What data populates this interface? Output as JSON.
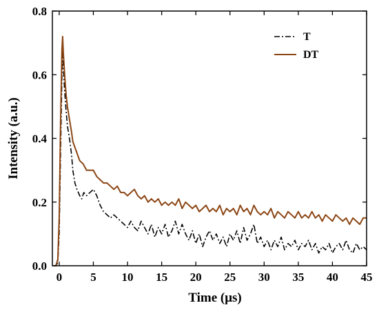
{
  "chart_data": {
    "type": "line",
    "xlabel": "Time (μs)",
    "ylabel": "Intensity (a.u.)",
    "xlim": [
      -1,
      45
    ],
    "ylim": [
      0,
      0.8
    ],
    "x_ticks": [
      0,
      5,
      10,
      15,
      20,
      25,
      30,
      35,
      40,
      45
    ],
    "y_ticks": [
      0.0,
      0.2,
      0.4,
      0.6,
      0.8
    ],
    "y_tick_labels": [
      "0.0",
      "0.2",
      "0.4",
      "0.6",
      "0.8"
    ],
    "legend_position": "top-right",
    "grid": false,
    "series": [
      {
        "name": "T",
        "color": "#000000",
        "style": "dash-dot",
        "points": [
          [
            -0.8,
            0.0
          ],
          [
            -0.5,
            0.0
          ],
          [
            -0.2,
            0.01
          ],
          [
            0.0,
            0.1
          ],
          [
            0.2,
            0.35
          ],
          [
            0.4,
            0.6
          ],
          [
            0.5,
            0.7
          ],
          [
            0.6,
            0.62
          ],
          [
            0.8,
            0.55
          ],
          [
            1.0,
            0.49
          ],
          [
            1.2,
            0.44
          ],
          [
            1.5,
            0.4
          ],
          [
            1.8,
            0.35
          ],
          [
            2.0,
            0.3
          ],
          [
            2.3,
            0.26
          ],
          [
            2.6,
            0.24
          ],
          [
            3.0,
            0.22
          ],
          [
            3.3,
            0.21
          ],
          [
            3.6,
            0.23
          ],
          [
            4.0,
            0.22
          ],
          [
            4.5,
            0.23
          ],
          [
            5.0,
            0.24
          ],
          [
            5.5,
            0.22
          ],
          [
            6.0,
            0.19
          ],
          [
            6.5,
            0.17
          ],
          [
            7.0,
            0.16
          ],
          [
            7.5,
            0.15
          ],
          [
            8.0,
            0.16
          ],
          [
            8.5,
            0.15
          ],
          [
            9.0,
            0.14
          ],
          [
            9.5,
            0.13
          ],
          [
            10.0,
            0.12
          ],
          [
            10.5,
            0.14
          ],
          [
            11.0,
            0.12
          ],
          [
            11.5,
            0.11
          ],
          [
            12.0,
            0.14
          ],
          [
            12.5,
            0.12
          ],
          [
            13.0,
            0.1
          ],
          [
            13.5,
            0.13
          ],
          [
            14.0,
            0.09
          ],
          [
            14.5,
            0.12
          ],
          [
            15.0,
            0.1
          ],
          [
            15.5,
            0.13
          ],
          [
            16.0,
            0.09
          ],
          [
            16.5,
            0.11
          ],
          [
            17.0,
            0.14
          ],
          [
            17.5,
            0.1
          ],
          [
            18.0,
            0.13
          ],
          [
            18.5,
            0.1
          ],
          [
            19.0,
            0.08
          ],
          [
            19.5,
            0.11
          ],
          [
            20.0,
            0.07
          ],
          [
            20.5,
            0.1
          ],
          [
            21.0,
            0.06
          ],
          [
            21.5,
            0.09
          ],
          [
            22.0,
            0.11
          ],
          [
            22.5,
            0.08
          ],
          [
            23.0,
            0.1
          ],
          [
            23.5,
            0.07
          ],
          [
            24.0,
            0.09
          ],
          [
            24.5,
            0.06
          ],
          [
            25.0,
            0.1
          ],
          [
            25.5,
            0.08
          ],
          [
            26.0,
            0.11
          ],
          [
            26.5,
            0.07
          ],
          [
            27.0,
            0.12
          ],
          [
            27.5,
            0.08
          ],
          [
            28.0,
            0.1
          ],
          [
            28.5,
            0.13
          ],
          [
            29.0,
            0.07
          ],
          [
            29.5,
            0.09
          ],
          [
            30.0,
            0.06
          ],
          [
            30.5,
            0.08
          ],
          [
            31.0,
            0.05
          ],
          [
            31.5,
            0.08
          ],
          [
            32.0,
            0.06
          ],
          [
            32.5,
            0.09
          ],
          [
            33.0,
            0.05
          ],
          [
            33.5,
            0.07
          ],
          [
            34.0,
            0.06
          ],
          [
            34.5,
            0.08
          ],
          [
            35.0,
            0.05
          ],
          [
            35.5,
            0.07
          ],
          [
            36.0,
            0.06
          ],
          [
            36.5,
            0.08
          ],
          [
            37.0,
            0.05
          ],
          [
            37.5,
            0.07
          ],
          [
            38.0,
            0.04
          ],
          [
            38.5,
            0.06
          ],
          [
            39.0,
            0.05
          ],
          [
            39.5,
            0.07
          ],
          [
            40.0,
            0.04
          ],
          [
            40.5,
            0.06
          ],
          [
            41.0,
            0.07
          ],
          [
            41.5,
            0.05
          ],
          [
            42.0,
            0.08
          ],
          [
            42.5,
            0.05
          ],
          [
            43.0,
            0.04
          ],
          [
            43.5,
            0.07
          ],
          [
            44.0,
            0.05
          ],
          [
            44.5,
            0.06
          ],
          [
            45.0,
            0.05
          ]
        ]
      },
      {
        "name": "DT",
        "color": "#8B4513",
        "style": "solid",
        "points": [
          [
            -0.8,
            0.0
          ],
          [
            -0.5,
            0.0
          ],
          [
            -0.2,
            0.02
          ],
          [
            0.0,
            0.15
          ],
          [
            0.2,
            0.45
          ],
          [
            0.4,
            0.68
          ],
          [
            0.5,
            0.72
          ],
          [
            0.6,
            0.67
          ],
          [
            0.8,
            0.6
          ],
          [
            1.0,
            0.54
          ],
          [
            1.2,
            0.5
          ],
          [
            1.5,
            0.46
          ],
          [
            1.8,
            0.42
          ],
          [
            2.0,
            0.39
          ],
          [
            2.5,
            0.36
          ],
          [
            3.0,
            0.33
          ],
          [
            3.5,
            0.32
          ],
          [
            4.0,
            0.3
          ],
          [
            4.5,
            0.3
          ],
          [
            5.0,
            0.3
          ],
          [
            5.5,
            0.28
          ],
          [
            6.0,
            0.27
          ],
          [
            6.5,
            0.26
          ],
          [
            7.0,
            0.26
          ],
          [
            7.5,
            0.25
          ],
          [
            8.0,
            0.24
          ],
          [
            8.5,
            0.25
          ],
          [
            9.0,
            0.23
          ],
          [
            9.5,
            0.23
          ],
          [
            10.0,
            0.22
          ],
          [
            10.5,
            0.23
          ],
          [
            11.0,
            0.24
          ],
          [
            11.5,
            0.22
          ],
          [
            12.0,
            0.21
          ],
          [
            12.5,
            0.22
          ],
          [
            13.0,
            0.2
          ],
          [
            13.5,
            0.21
          ],
          [
            14.0,
            0.2
          ],
          [
            14.5,
            0.21
          ],
          [
            15.0,
            0.19
          ],
          [
            15.5,
            0.2
          ],
          [
            16.0,
            0.19
          ],
          [
            16.5,
            0.2
          ],
          [
            17.0,
            0.19
          ],
          [
            17.5,
            0.21
          ],
          [
            18.0,
            0.18
          ],
          [
            18.5,
            0.2
          ],
          [
            19.0,
            0.19
          ],
          [
            19.5,
            0.18
          ],
          [
            20.0,
            0.19
          ],
          [
            20.5,
            0.17
          ],
          [
            21.0,
            0.18
          ],
          [
            21.5,
            0.19
          ],
          [
            22.0,
            0.17
          ],
          [
            22.5,
            0.18
          ],
          [
            23.0,
            0.17
          ],
          [
            23.5,
            0.19
          ],
          [
            24.0,
            0.16
          ],
          [
            24.5,
            0.18
          ],
          [
            25.0,
            0.17
          ],
          [
            25.5,
            0.18
          ],
          [
            26.0,
            0.16
          ],
          [
            26.5,
            0.19
          ],
          [
            27.0,
            0.17
          ],
          [
            27.5,
            0.18
          ],
          [
            28.0,
            0.16
          ],
          [
            28.5,
            0.19
          ],
          [
            29.0,
            0.17
          ],
          [
            29.5,
            0.16
          ],
          [
            30.0,
            0.17
          ],
          [
            30.5,
            0.16
          ],
          [
            31.0,
            0.18
          ],
          [
            31.5,
            0.15
          ],
          [
            32.0,
            0.17
          ],
          [
            32.5,
            0.16
          ],
          [
            33.0,
            0.15
          ],
          [
            33.5,
            0.17
          ],
          [
            34.0,
            0.16
          ],
          [
            34.5,
            0.15
          ],
          [
            35.0,
            0.17
          ],
          [
            35.5,
            0.15
          ],
          [
            36.0,
            0.16
          ],
          [
            36.5,
            0.15
          ],
          [
            37.0,
            0.17
          ],
          [
            37.5,
            0.15
          ],
          [
            38.0,
            0.16
          ],
          [
            38.5,
            0.14
          ],
          [
            39.0,
            0.16
          ],
          [
            39.5,
            0.15
          ],
          [
            40.0,
            0.14
          ],
          [
            40.5,
            0.16
          ],
          [
            41.0,
            0.15
          ],
          [
            41.5,
            0.14
          ],
          [
            42.0,
            0.15
          ],
          [
            42.5,
            0.13
          ],
          [
            43.0,
            0.15
          ],
          [
            43.5,
            0.14
          ],
          [
            44.0,
            0.13
          ],
          [
            44.5,
            0.15
          ],
          [
            45.0,
            0.15
          ]
        ]
      }
    ]
  }
}
